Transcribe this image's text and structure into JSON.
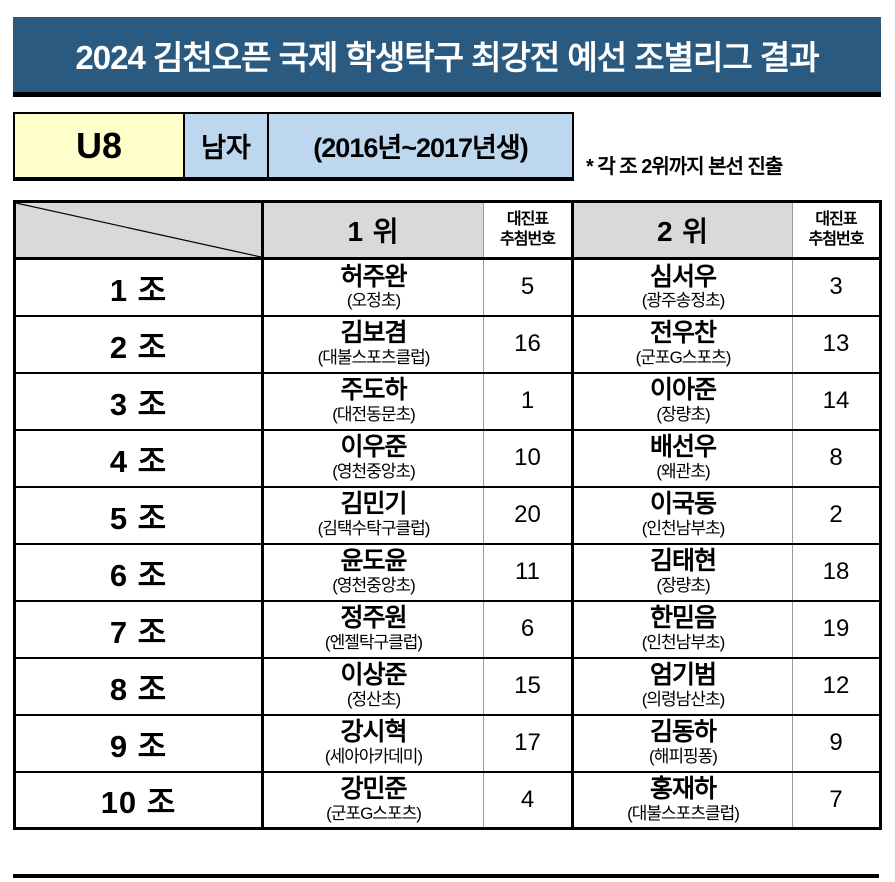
{
  "title": "2024 김천오픈 국제 학생탁구 최강전 예선 조별리그 결과",
  "category": {
    "code": "U8",
    "gender": "남자",
    "birth_years": "(2016년~2017년생)",
    "note": "* 각 조 2위까지 본선 진출"
  },
  "table": {
    "headers": {
      "first_place": "1 위",
      "draw_label_line1": "대진표",
      "draw_label_line2": "추첨번호",
      "second_place": "2 위"
    },
    "rows": [
      {
        "group": "1 조",
        "first_name": "허주완",
        "first_club": "(오정초)",
        "first_draw": "5",
        "second_name": "심서우",
        "second_club": "(광주송정초)",
        "second_draw": "3"
      },
      {
        "group": "2 조",
        "first_name": "김보겸",
        "first_club": "(대불스포츠클럽)",
        "first_draw": "16",
        "second_name": "전우찬",
        "second_club": "(군포G스포츠)",
        "second_draw": "13"
      },
      {
        "group": "3 조",
        "first_name": "주도하",
        "first_club": "(대전동문초)",
        "first_draw": "1",
        "second_name": "이아준",
        "second_club": "(장량초)",
        "second_draw": "14"
      },
      {
        "group": "4 조",
        "first_name": "이우준",
        "first_club": "(영천중앙초)",
        "first_draw": "10",
        "second_name": "배선우",
        "second_club": "(왜관초)",
        "second_draw": "8"
      },
      {
        "group": "5 조",
        "first_name": "김민기",
        "first_club": "(김택수탁구클럽)",
        "first_draw": "20",
        "second_name": "이국동",
        "second_club": "(인천남부초)",
        "second_draw": "2"
      },
      {
        "group": "6 조",
        "first_name": "윤도윤",
        "first_club": "(영천중앙초)",
        "first_draw": "11",
        "second_name": "김태현",
        "second_club": "(장량초)",
        "second_draw": "18"
      },
      {
        "group": "7 조",
        "first_name": "정주원",
        "first_club": "(엔젤탁구클럽)",
        "first_draw": "6",
        "second_name": "한믿음",
        "second_club": "(인천남부초)",
        "second_draw": "19"
      },
      {
        "group": "8 조",
        "first_name": "이상준",
        "first_club": "(정산초)",
        "first_draw": "15",
        "second_name": "엄기범",
        "second_club": "(의령남산초)",
        "second_draw": "12"
      },
      {
        "group": "9 조",
        "first_name": "강시혁",
        "first_club": "(세아아카데미)",
        "first_draw": "17",
        "second_name": "김동하",
        "second_club": "(해피핑퐁)",
        "second_draw": "9"
      },
      {
        "group": "10 조",
        "first_name": "강민준",
        "first_club": "(군포G스포츠)",
        "first_draw": "4",
        "second_name": "홍재하",
        "second_club": "(대불스포츠클럽)",
        "second_draw": "7"
      }
    ]
  },
  "colors": {
    "title-bg": "#2A5A80",
    "title-text": "#FFFFFF",
    "code-bg": "#FFFFCC",
    "info-bg": "#BDD7EE",
    "header-bg": "#D9D9D9"
  }
}
